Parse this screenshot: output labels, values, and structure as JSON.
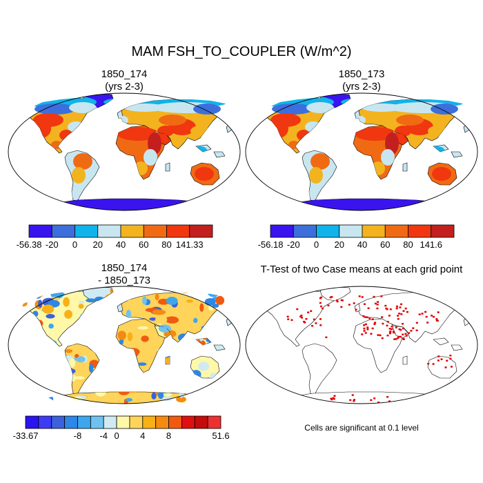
{
  "title": "MAM FSH_TO_COUPLER (W/m^2)",
  "panels": [
    {
      "title_line1": "1850_174",
      "title_line2": "(yrs 2-3)"
    },
    {
      "title_line1": "1850_173",
      "title_line2": "(yrs 2-3)"
    },
    {
      "title_line1": "1850_174",
      "title_line2": "- 1850_173"
    },
    {
      "title_line1": "T-Test of two Case means at each grid point",
      "title_line2": ""
    }
  ],
  "colorbars": [
    {
      "colors": [
        "#3a14ef",
        "#3c6fdc",
        "#10b3ea",
        "#c8e6f0",
        "#f3b31f",
        "#f06a14",
        "#f0370f",
        "#c41f1f"
      ],
      "labels": [
        "-56.38",
        "-20",
        "0",
        "20",
        "40",
        "60",
        "80",
        "141.33"
      ]
    },
    {
      "colors": [
        "#3a14ef",
        "#3c6fdc",
        "#10b3ea",
        "#c8e6f0",
        "#f3b31f",
        "#f06a14",
        "#f0370f",
        "#c41f1f"
      ],
      "labels": [
        "-56.18",
        "-20",
        "0",
        "20",
        "40",
        "60",
        "80",
        "141.6"
      ]
    },
    {
      "colors": [
        "#2a14f0",
        "#3d3cf4",
        "#3a62dc",
        "#2e86e6",
        "#3ea6ec",
        "#6ec2f0",
        "#cfeaf3",
        "#fff8a8",
        "#ffd45a",
        "#f8b017",
        "#f58a10",
        "#f05a10",
        "#e01010",
        "#c40c0c",
        "#ee3030"
      ],
      "labels": [
        "-33.67",
        "-8",
        "-4",
        "0",
        "4",
        "8",
        "51.6"
      ],
      "label_at_boundary": [
        0,
        4,
        6,
        7,
        9,
        11,
        15
      ]
    }
  ],
  "significance_note": "Cells are significant at 0.1 level"
}
